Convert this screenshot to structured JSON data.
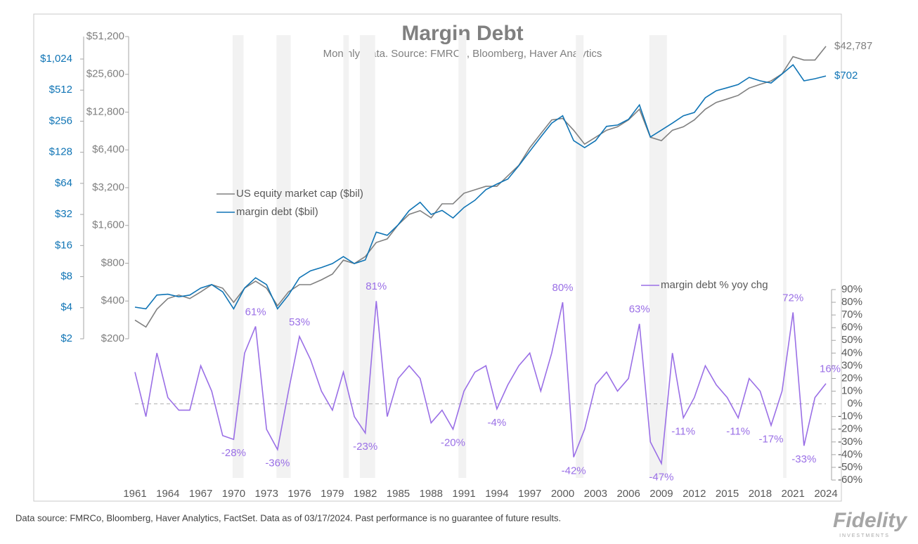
{
  "chart_data": {
    "type": "line",
    "title": "Margin Debt",
    "subtitle": "Monthly Data.  Source:  FMRCo, Bloomberg, Haver Analytics",
    "footnote": "Data source: FMRCo, Bloomberg, Haver Analytics, FactSet. Data as of 03/17/2024. Past performance is no guarantee of future results.",
    "logo": "Fidelity",
    "logo_sub": "INVESTMENTS",
    "x": [
      1961,
      1962,
      1963,
      1964,
      1965,
      1966,
      1967,
      1968,
      1969,
      1970,
      1971,
      1972,
      1973,
      1974,
      1975,
      1976,
      1977,
      1978,
      1979,
      1980,
      1981,
      1982,
      1983,
      1984,
      1985,
      1986,
      1987,
      1988,
      1989,
      1990,
      1991,
      1992,
      1993,
      1994,
      1995,
      1996,
      1997,
      1998,
      1999,
      2000,
      2001,
      2002,
      2003,
      2004,
      2005,
      2006,
      2007,
      2008,
      2009,
      2010,
      2011,
      2012,
      2013,
      2014,
      2015,
      2016,
      2017,
      2018,
      2019,
      2020,
      2021,
      2022,
      2023,
      2024
    ],
    "xlim": [
      1961,
      2024
    ],
    "xticks": [
      1961,
      1964,
      1967,
      1970,
      1973,
      1976,
      1979,
      1982,
      1985,
      1988,
      1991,
      1994,
      1997,
      2000,
      2003,
      2006,
      2009,
      2012,
      2015,
      2018,
      2021,
      2024
    ],
    "shaded_periods": [
      [
        1969.9,
        1970.9
      ],
      [
        1973.9,
        1975.2
      ],
      [
        1980.0,
        1980.5
      ],
      [
        1981.5,
        1982.9
      ],
      [
        1990.5,
        1991.2
      ],
      [
        2001.2,
        2001.9
      ],
      [
        2007.9,
        2009.5
      ],
      [
        2020.1,
        2020.4
      ]
    ],
    "log_scale": {
      "y": true,
      "y2": true
    },
    "ylim": [
      200,
      51200
    ],
    "yticks": [
      {
        "value": 200,
        "label": "$200"
      },
      {
        "value": 400,
        "label": "$400"
      },
      {
        "value": 800,
        "label": "$800"
      },
      {
        "value": 1600,
        "label": "$1,600"
      },
      {
        "value": 3200,
        "label": "$3,200"
      },
      {
        "value": 6400,
        "label": "$6,400"
      },
      {
        "value": 12800,
        "label": "$12,800"
      },
      {
        "value": 25600,
        "label": "$25,600"
      },
      {
        "value": 51200,
        "label": "$51,200"
      }
    ],
    "y2lim": [
      2,
      1024
    ],
    "y2ticks": [
      {
        "value": 2,
        "label": "$2"
      },
      {
        "value": 4,
        "label": "$4"
      },
      {
        "value": 8,
        "label": "$8"
      },
      {
        "value": 16,
        "label": "$16"
      },
      {
        "value": 32,
        "label": "$32"
      },
      {
        "value": 64,
        "label": "$64"
      },
      {
        "value": 128,
        "label": "$128"
      },
      {
        "value": 256,
        "label": "$256"
      },
      {
        "value": 512,
        "label": "$512"
      },
      {
        "value": 1024,
        "label": "$1,024"
      }
    ],
    "y3lim": [
      -60,
      90
    ],
    "y3ticks": [
      {
        "value": -60,
        "label": "-60%"
      },
      {
        "value": -50,
        "label": "-50%"
      },
      {
        "value": -40,
        "label": "-40%"
      },
      {
        "value": -30,
        "label": "-30%"
      },
      {
        "value": -20,
        "label": "-20%"
      },
      {
        "value": -10,
        "label": "-10%"
      },
      {
        "value": 0,
        "label": "0%"
      },
      {
        "value": 10,
        "label": "10%"
      },
      {
        "value": 20,
        "label": "20%"
      },
      {
        "value": 30,
        "label": "30%"
      },
      {
        "value": 40,
        "label": "40%"
      },
      {
        "value": 50,
        "label": "50%"
      },
      {
        "value": 60,
        "label": "60%"
      },
      {
        "value": 70,
        "label": "70%"
      },
      {
        "value": 80,
        "label": "80%"
      },
      {
        "value": 90,
        "label": "90%"
      }
    ],
    "series": [
      {
        "name": "US equity market cap ($bil)",
        "color": "#808080",
        "axis": "y",
        "values": [
          282,
          248,
          344,
          418,
          446,
          418,
          473,
          540,
          506,
          390,
          506,
          575,
          506,
          366,
          473,
          540,
          540,
          590,
          655,
          846,
          795,
          904,
          1170,
          1250,
          1620,
          1960,
          2100,
          1840,
          2380,
          2380,
          2890,
          3080,
          3280,
          3280,
          3980,
          4820,
          6660,
          8600,
          11100,
          11400,
          9180,
          7110,
          8070,
          9180,
          9770,
          11100,
          13500,
          8070,
          7580,
          9180,
          9770,
          11100,
          13500,
          15300,
          16300,
          17400,
          19900,
          21300,
          22700,
          25800,
          35400,
          33300,
          33300,
          42787
        ],
        "value_labels": [
          null,
          null,
          null,
          null,
          null,
          null,
          null,
          null,
          null,
          null,
          null,
          null,
          null,
          null,
          null,
          null,
          null,
          null,
          null,
          null,
          null,
          null,
          null,
          null,
          null,
          null,
          null,
          null,
          null,
          null,
          null,
          null,
          null,
          null,
          null,
          null,
          null,
          null,
          null,
          null,
          null,
          null,
          null,
          null,
          null,
          null,
          null,
          null,
          null,
          null,
          null,
          null,
          null,
          null,
          null,
          null,
          null,
          null,
          null,
          null,
          null,
          null,
          null,
          "$42,787"
        ]
      },
      {
        "name": "margin debt ($bil)",
        "color": "#0f74b5",
        "axis": "y2",
        "values": [
          4.05,
          3.9,
          5.3,
          5.4,
          5.1,
          5.3,
          6.2,
          6.7,
          5.7,
          3.9,
          6.2,
          7.8,
          6.7,
          3.9,
          5.3,
          7.8,
          9.1,
          9.8,
          10.7,
          12.5,
          10.7,
          11.6,
          21.6,
          20.1,
          25.4,
          34.9,
          42,
          32,
          35,
          29.6,
          37.4,
          43.9,
          55.7,
          63,
          70.5,
          95,
          131,
          180,
          245,
          289,
          166,
          142,
          166,
          228,
          235,
          267,
          368,
          180,
          210,
          245,
          289,
          311,
          432,
          505,
          540,
          580,
          680,
          630,
          600,
          735,
          900,
          630,
          660,
          702
        ],
        "value_labels": [
          null,
          null,
          null,
          null,
          null,
          null,
          null,
          null,
          null,
          null,
          null,
          null,
          null,
          null,
          null,
          null,
          null,
          null,
          null,
          null,
          null,
          null,
          null,
          null,
          null,
          null,
          null,
          null,
          null,
          null,
          null,
          null,
          null,
          null,
          null,
          null,
          null,
          null,
          null,
          null,
          null,
          null,
          null,
          null,
          null,
          null,
          null,
          null,
          null,
          null,
          null,
          null,
          null,
          null,
          null,
          null,
          null,
          null,
          null,
          null,
          null,
          null,
          null,
          "$702"
        ]
      },
      {
        "name": "margin debt % yoy chg",
        "color": "#9a6fe6",
        "axis": "y3",
        "values": [
          25,
          -10,
          40,
          5,
          -5,
          -5,
          30,
          10,
          -25,
          -28,
          40,
          61,
          -20,
          -36,
          10,
          53,
          35,
          10,
          -5,
          25,
          -10,
          -23,
          81,
          -10,
          20,
          30,
          20,
          -15,
          -5,
          -20,
          10,
          25,
          30,
          -4,
          15,
          30,
          40,
          10,
          40,
          80,
          -42,
          -20,
          15,
          25,
          10,
          20,
          63,
          -30,
          -47,
          40,
          -11,
          5,
          30,
          15,
          5,
          -11,
          20,
          10,
          -17,
          10,
          72,
          -33,
          5,
          16
        ],
        "value_labels": [
          null,
          null,
          null,
          null,
          null,
          null,
          null,
          null,
          null,
          "-28%",
          null,
          "61%",
          null,
          "-36%",
          null,
          "53%",
          null,
          null,
          null,
          null,
          null,
          "-23%",
          "81%",
          null,
          null,
          null,
          null,
          null,
          null,
          "-20%",
          null,
          null,
          null,
          "-4%",
          null,
          null,
          null,
          null,
          null,
          "80%",
          "-42%",
          null,
          null,
          null,
          null,
          null,
          "63%",
          null,
          "-47%",
          null,
          "-11%",
          null,
          null,
          null,
          null,
          "-11%",
          null,
          null,
          "-17%",
          null,
          "72%",
          "-33%",
          null,
          "16%"
        ]
      }
    ]
  }
}
